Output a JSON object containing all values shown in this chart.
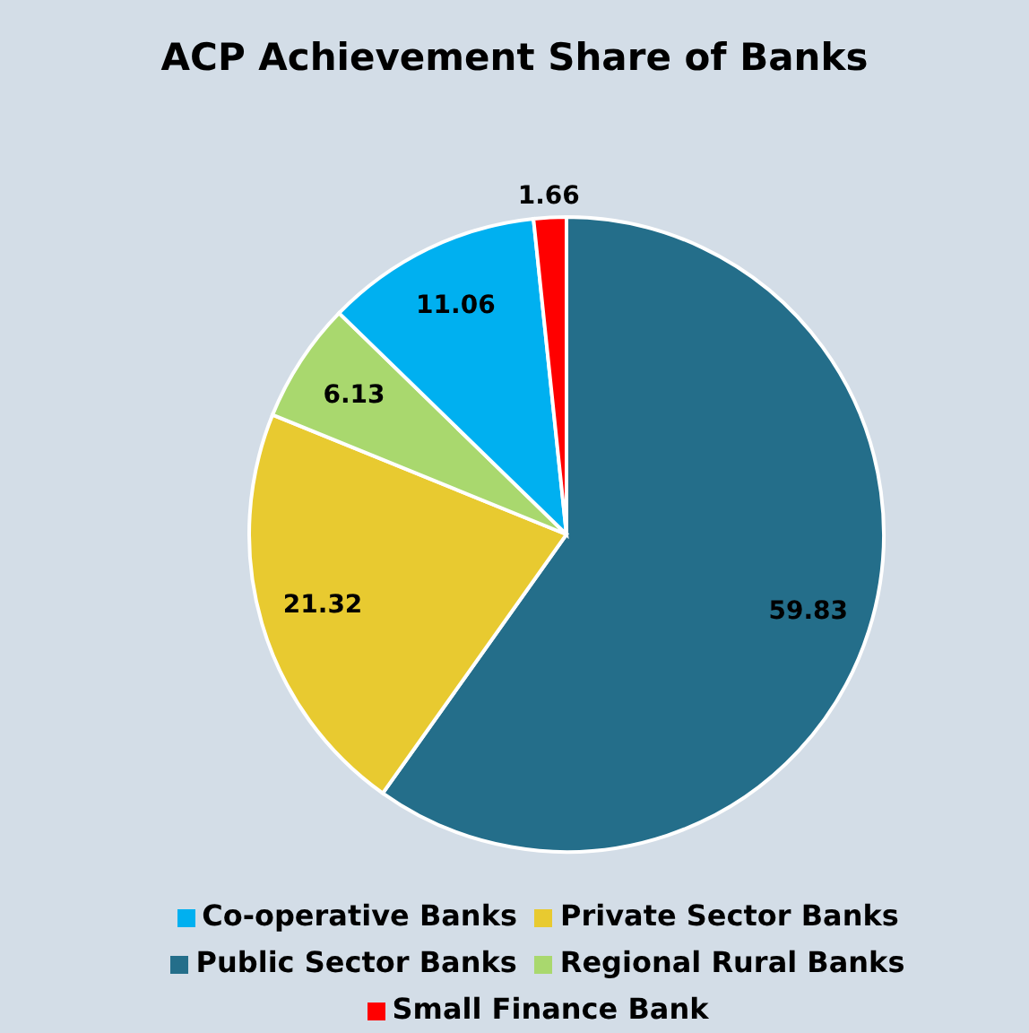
{
  "chart_data": {
    "type": "pie",
    "title": "ACP Achievement Share of Banks",
    "categories": [
      "Public Sector Banks",
      "Private Sector Banks",
      "Regional Rural Banks",
      "Co-operative Banks",
      "Small Finance Bank"
    ],
    "values": [
      59.83,
      21.32,
      6.13,
      11.06,
      1.66
    ],
    "colors": [
      "#246e8a",
      "#e8ca30",
      "#a9d86e",
      "#00b0f0",
      "#ff0000"
    ],
    "data_labels": true,
    "legend": "bottom"
  }
}
